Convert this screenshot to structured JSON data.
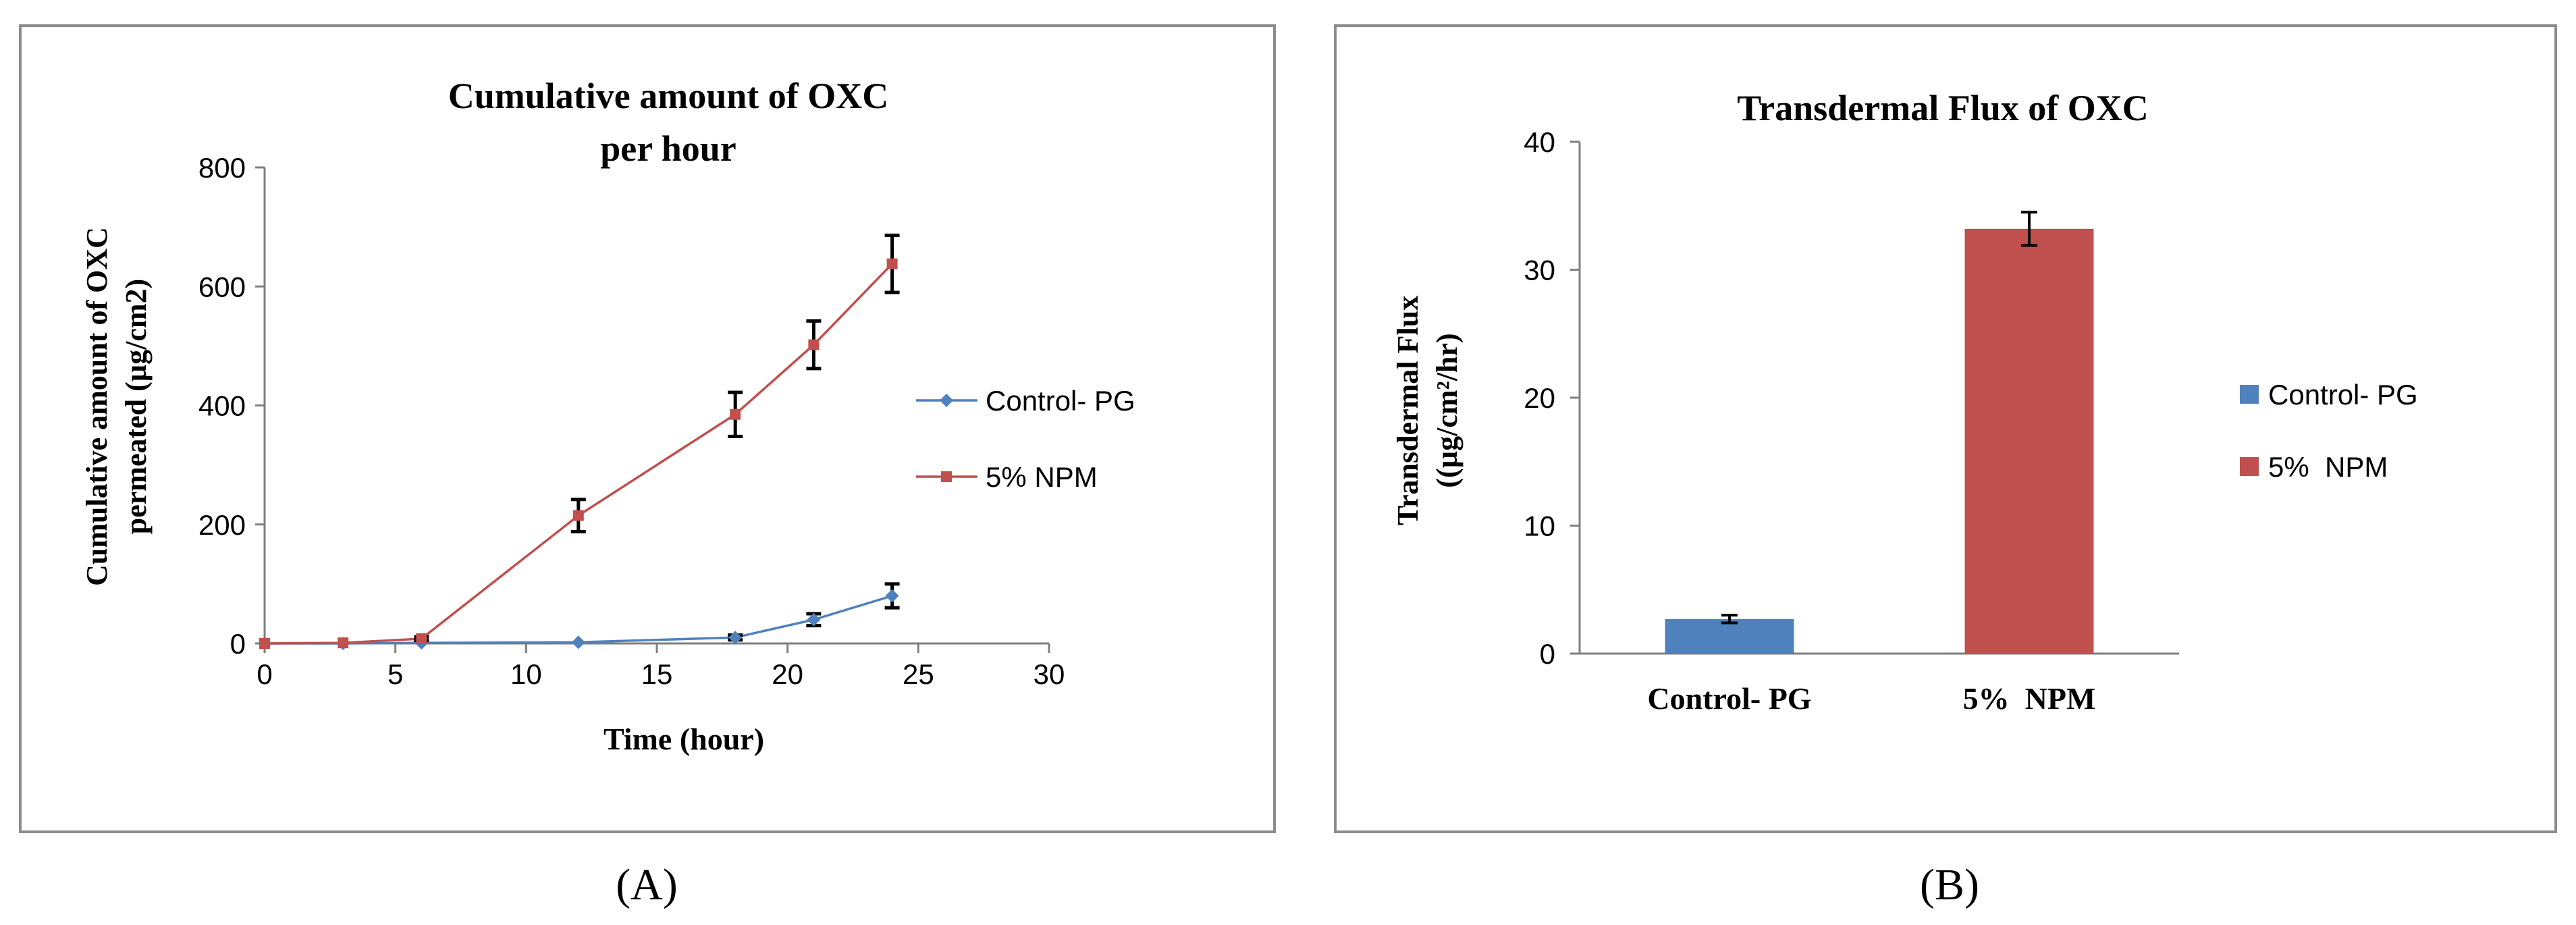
{
  "chart_data": [
    {
      "type": "line",
      "title_line1": "Cumulative amount of OXC",
      "title_line2": "per hour",
      "xlabel": "Time (hour)",
      "ylabel_line1": "Cumulative amount of OXC",
      "ylabel_line2": "permeated (µg/cm2)",
      "xlim": [
        0,
        30
      ],
      "ylim": [
        0,
        800
      ],
      "xticks": [
        0,
        5,
        10,
        15,
        20,
        25,
        30
      ],
      "yticks": [
        0,
        200,
        400,
        600,
        800
      ],
      "series": [
        {
          "name": "Control- PG",
          "color": "#4f81bd",
          "marker": "diamond",
          "x": [
            0,
            3,
            6,
            12,
            18,
            21,
            24
          ],
          "y": [
            0,
            0,
            1,
            2,
            10,
            40,
            80
          ],
          "err": [
            0,
            0,
            0,
            0,
            4,
            10,
            20
          ]
        },
        {
          "name": "5% NPM",
          "color": "#c0504d",
          "marker": "square",
          "x": [
            0,
            3,
            6,
            12,
            18,
            21,
            24
          ],
          "y": [
            0,
            1,
            8,
            215,
            385,
            502,
            638
          ],
          "err": [
            0,
            0,
            3,
            27,
            37,
            40,
            48
          ]
        }
      ],
      "panel_label": "(A)"
    },
    {
      "type": "bar",
      "title": "Transdermal Flux of OXC",
      "ylabel_line1": "Transdermal Flux",
      "ylabel_line2": "((µg/cm²/hr)",
      "categories": [
        "Control- PG",
        "5%  NPM"
      ],
      "values": [
        2.7,
        33.2
      ],
      "errors": [
        0.3,
        1.3
      ],
      "colors": [
        "#4f81bd",
        "#c0504d"
      ],
      "legend": [
        "Control- PG",
        "5%  NPM"
      ],
      "ylim": [
        0,
        40
      ],
      "yticks": [
        0,
        10,
        20,
        30,
        40
      ],
      "panel_label": "(B)"
    }
  ]
}
